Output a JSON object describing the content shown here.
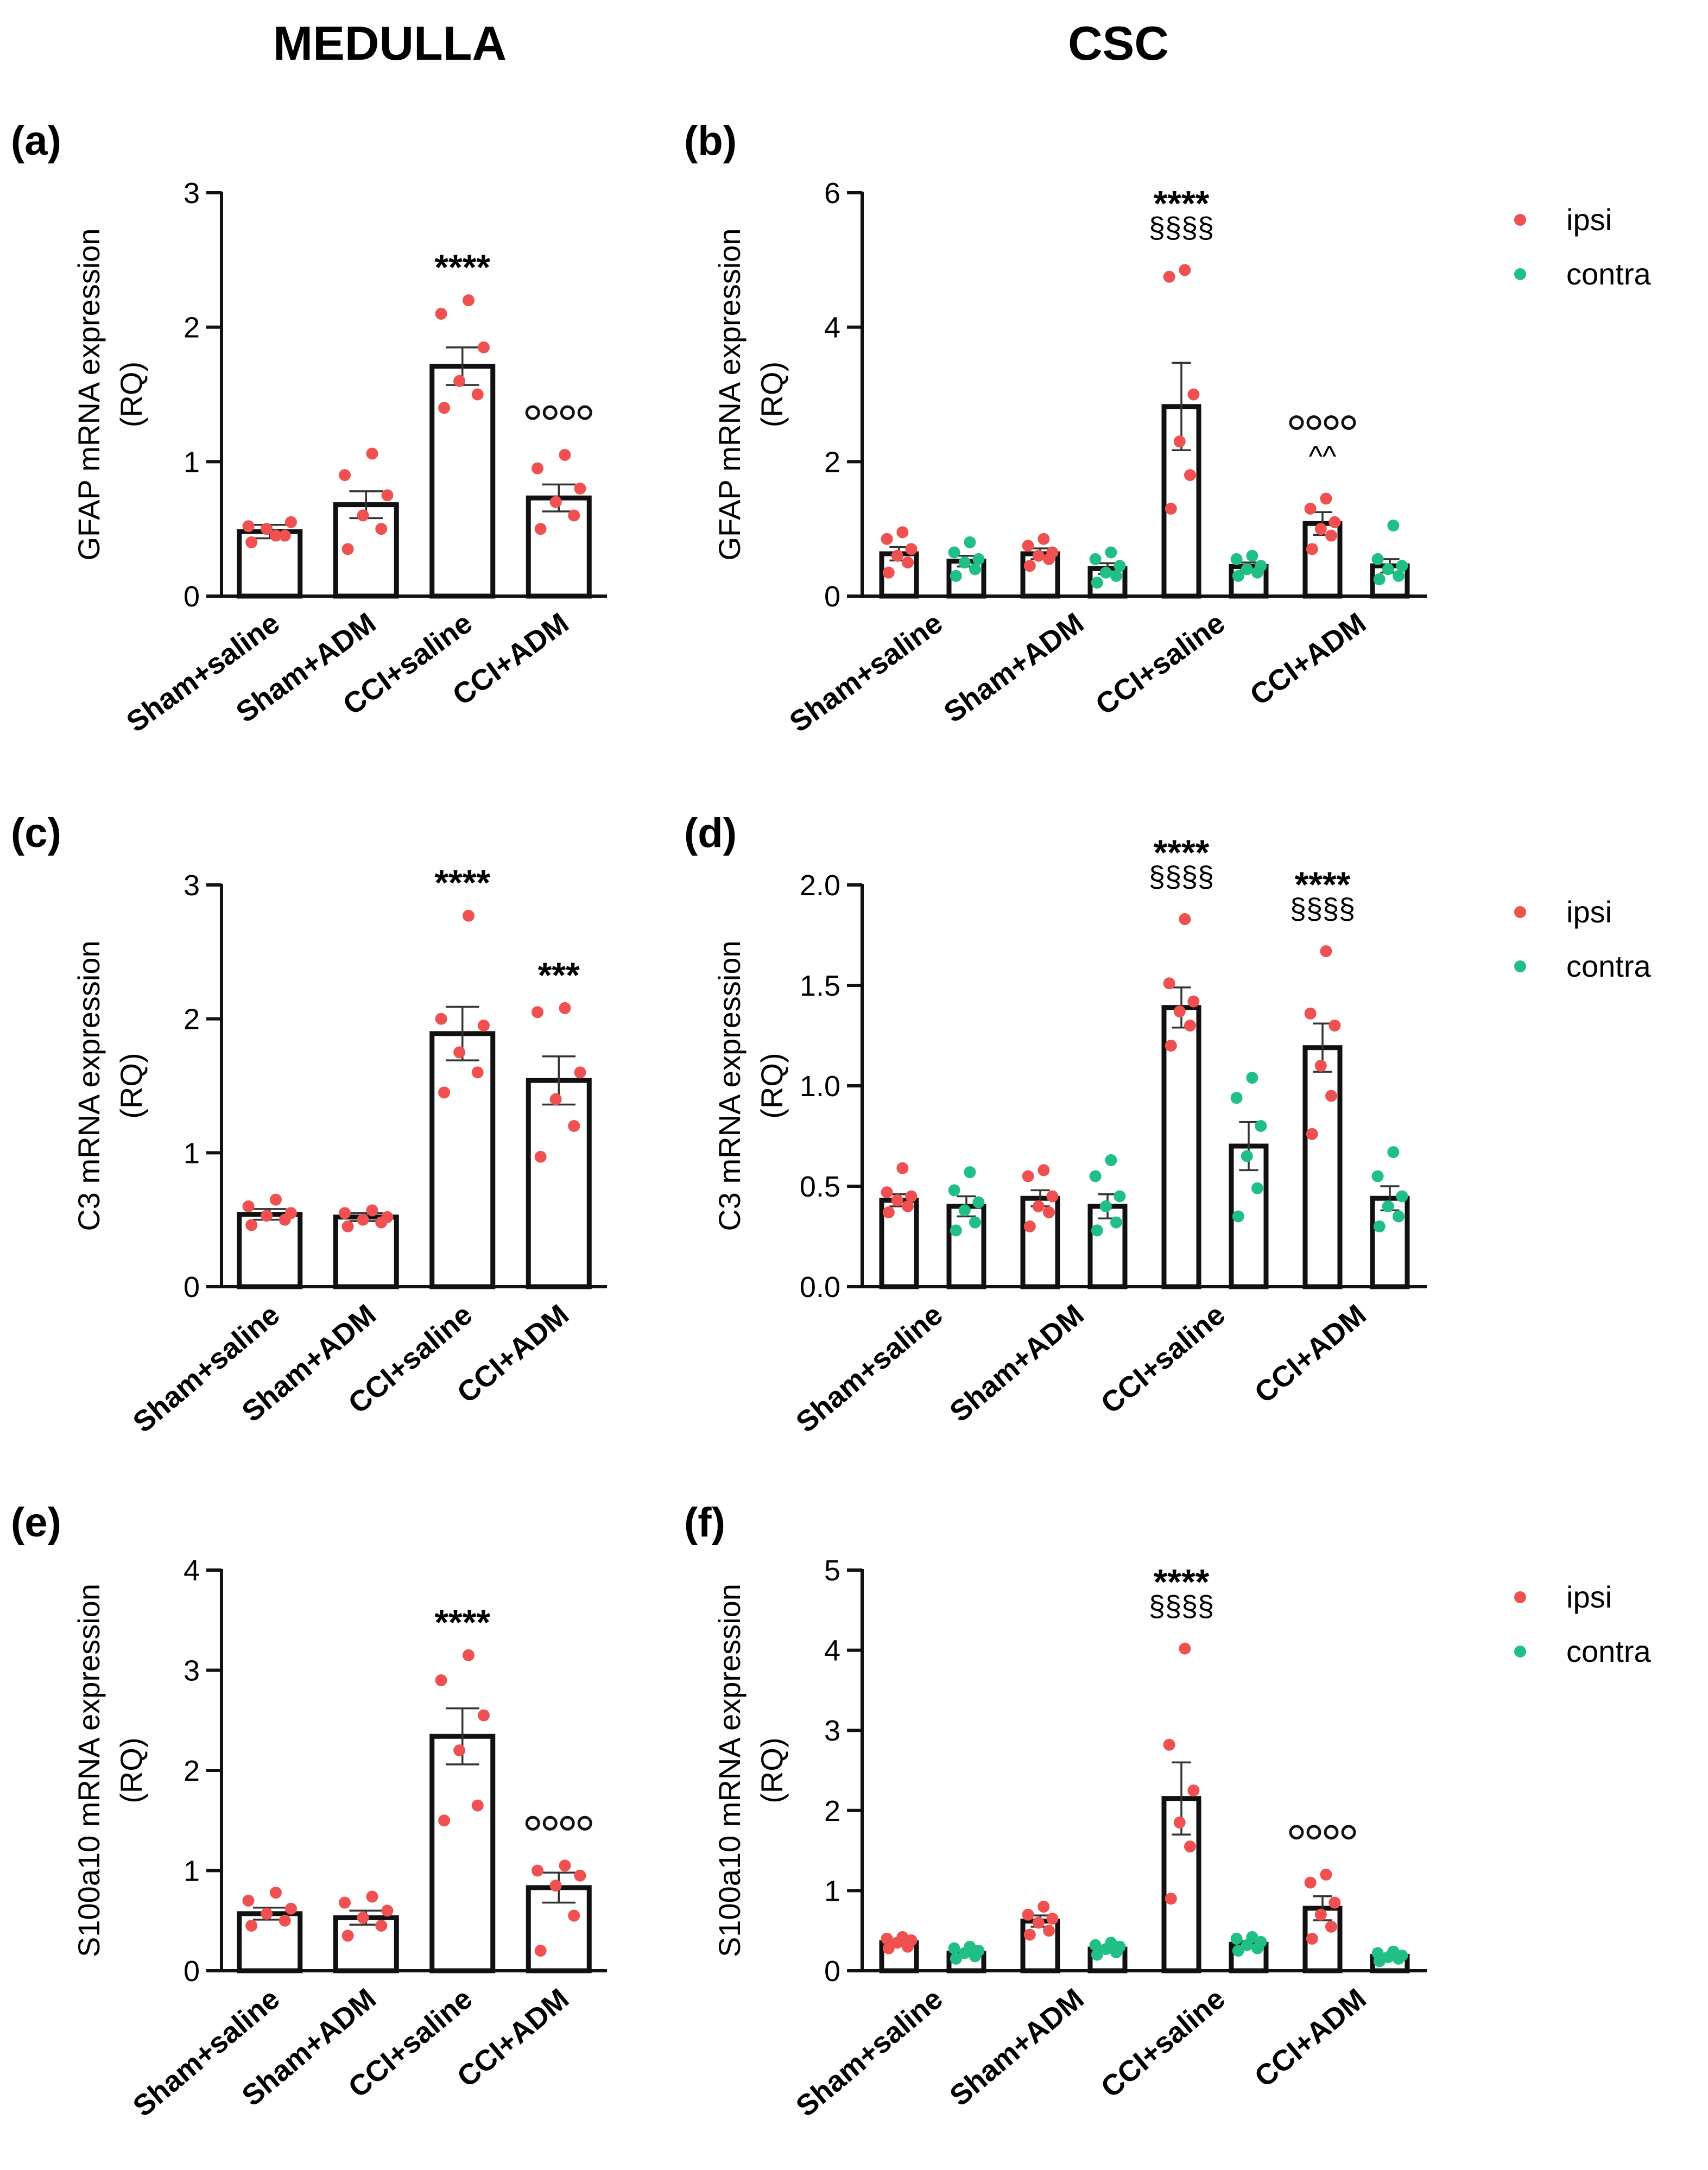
{
  "columns": {
    "left": "MEDULLA",
    "right": "CSC"
  },
  "colors": {
    "ipsi": "#f05050",
    "contra": "#1fbf85",
    "axis": "#111111",
    "bar_fill": "#ffffff"
  },
  "chart_data": [
    {
      "id": "a",
      "panel_label": "(a)",
      "type": "bar",
      "title": "",
      "ylabel_lines": [
        "GFAP mRNA expression",
        "(RQ)"
      ],
      "categories": [
        "Sham+saline",
        "Sham+ADM",
        "CCI+saline",
        "CCI+ADM"
      ],
      "ylim": [
        0,
        3
      ],
      "yticks": [
        "0",
        "1",
        "2",
        "3"
      ],
      "series": [
        {
          "name": "ipsi",
          "values": [
            0.48,
            0.68,
            1.71,
            0.73
          ],
          "sem": [
            0.05,
            0.1,
            0.14,
            0.1
          ],
          "points": [
            [
              0.4,
              0.45,
              0.5,
              0.55,
              0.52,
              0.45
            ],
            [
              0.35,
              0.5,
              0.6,
              0.75,
              0.9,
              1.06
            ],
            [
              1.4,
              1.5,
              1.6,
              1.85,
              2.1,
              2.2
            ],
            [
              0.5,
              0.6,
              0.7,
              0.8,
              0.95,
              1.05
            ]
          ]
        }
      ],
      "annotations": [
        {
          "category": 2,
          "lines": [
            "****"
          ]
        },
        {
          "category": 3,
          "lines": [
            "oooo"
          ]
        }
      ]
    },
    {
      "id": "b",
      "panel_label": "(b)",
      "type": "bar",
      "title": "",
      "ylabel_lines": [
        "GFAP mRNA expression",
        "(RQ)"
      ],
      "categories": [
        "Sham+saline",
        "Sham+ADM",
        "CCI+saline",
        "CCI+ADM"
      ],
      "ylim": [
        0,
        6
      ],
      "yticks": [
        "0",
        "2",
        "4",
        "6"
      ],
      "legend": [
        "ipsi",
        "contra"
      ],
      "series": [
        {
          "name": "ipsi",
          "values": [
            0.63,
            0.63,
            2.82,
            1.08
          ],
          "sem": [
            0.1,
            0.08,
            0.65,
            0.17
          ],
          "points": [
            [
              0.35,
              0.5,
              0.6,
              0.7,
              0.85,
              0.95
            ],
            [
              0.45,
              0.55,
              0.6,
              0.65,
              0.75,
              0.85
            ],
            [
              1.3,
              1.8,
              2.3,
              3.0,
              4.75,
              4.85
            ],
            [
              0.7,
              0.9,
              1.0,
              1.1,
              1.3,
              1.45
            ]
          ]
        },
        {
          "name": "contra",
          "values": [
            0.52,
            0.41,
            0.44,
            0.45
          ],
          "sem": [
            0.08,
            0.08,
            0.06,
            0.1
          ],
          "points": [
            [
              0.3,
              0.4,
              0.5,
              0.55,
              0.65,
              0.8
            ],
            [
              0.2,
              0.3,
              0.35,
              0.45,
              0.55,
              0.65
            ],
            [
              0.3,
              0.35,
              0.4,
              0.45,
              0.55,
              0.6
            ],
            [
              0.25,
              0.3,
              0.4,
              0.45,
              0.55,
              1.05
            ]
          ]
        }
      ],
      "annotations": [
        {
          "category": 2,
          "lines": [
            "****",
            "§§§§"
          ]
        },
        {
          "category": 3,
          "lines": [
            "oooo",
            "^^"
          ]
        }
      ]
    },
    {
      "id": "c",
      "panel_label": "(c)",
      "type": "bar",
      "title": "",
      "ylabel_lines": [
        "C3 mRNA expression",
        "(RQ)"
      ],
      "categories": [
        "Sham+saline",
        "Sham+ADM",
        "CCI+saline",
        "CCI+ADM"
      ],
      "ylim": [
        0,
        3
      ],
      "yticks": [
        "0",
        "1",
        "2",
        "3"
      ],
      "series": [
        {
          "name": "ipsi",
          "values": [
            0.54,
            0.52,
            1.89,
            1.54
          ],
          "sem": [
            0.04,
            0.03,
            0.2,
            0.18
          ],
          "points": [
            [
              0.46,
              0.5,
              0.53,
              0.55,
              0.6,
              0.65
            ],
            [
              0.45,
              0.48,
              0.5,
              0.52,
              0.55,
              0.57
            ],
            [
              1.45,
              1.6,
              1.75,
              1.95,
              2.0,
              2.77
            ],
            [
              0.97,
              1.2,
              1.4,
              1.6,
              2.05,
              2.08
            ]
          ]
        }
      ],
      "annotations": [
        {
          "category": 2,
          "lines": [
            "****"
          ]
        },
        {
          "category": 3,
          "lines": [
            "***"
          ]
        }
      ]
    },
    {
      "id": "d",
      "panel_label": "(d)",
      "type": "bar",
      "title": "",
      "ylabel_lines": [
        "C3 mRNA expression",
        "(RQ)"
      ],
      "categories": [
        "Sham+saline",
        "Sham+ADM",
        "CCI+saline",
        "CCI+ADM"
      ],
      "ylim": [
        0,
        2
      ],
      "yticks": [
        "0.0",
        "0.5",
        "1.0",
        "1.5",
        "2.0"
      ],
      "legend": [
        "ipsi",
        "contra"
      ],
      "series": [
        {
          "name": "ipsi",
          "values": [
            0.43,
            0.44,
            1.39,
            1.19
          ],
          "sem": [
            0.03,
            0.04,
            0.1,
            0.12
          ],
          "points": [
            [
              0.37,
              0.4,
              0.43,
              0.45,
              0.47,
              0.59
            ],
            [
              0.3,
              0.37,
              0.4,
              0.45,
              0.55,
              0.58
            ],
            [
              1.2,
              1.3,
              1.37,
              1.42,
              1.51,
              1.83
            ],
            [
              0.76,
              0.95,
              1.1,
              1.3,
              1.36,
              1.67
            ]
          ]
        },
        {
          "name": "contra",
          "values": [
            0.4,
            0.4,
            0.7,
            0.44
          ],
          "sem": [
            0.05,
            0.06,
            0.12,
            0.06
          ],
          "points": [
            [
              0.28,
              0.32,
              0.38,
              0.42,
              0.48,
              0.57
            ],
            [
              0.28,
              0.32,
              0.4,
              0.45,
              0.55,
              0.63
            ],
            [
              0.35,
              0.49,
              0.65,
              0.8,
              0.94,
              1.04
            ],
            [
              0.3,
              0.35,
              0.4,
              0.45,
              0.55,
              0.67
            ]
          ]
        }
      ],
      "annotations": [
        {
          "category": 2,
          "lines": [
            "****",
            "§§§§"
          ]
        },
        {
          "category": 3,
          "lines": [
            "****",
            "§§§§"
          ]
        }
      ]
    },
    {
      "id": "e",
      "panel_label": "(e)",
      "type": "bar",
      "title": "",
      "ylabel_lines": [
        "S100a10 mRNA expression",
        "(RQ)"
      ],
      "categories": [
        "Sham+saline",
        "Sham+ADM",
        "CCI+saline",
        "CCI+ADM"
      ],
      "ylim": [
        0,
        4
      ],
      "yticks": [
        "0",
        "1",
        "2",
        "3",
        "4"
      ],
      "series": [
        {
          "name": "ipsi",
          "values": [
            0.57,
            0.53,
            2.34,
            0.83
          ],
          "sem": [
            0.06,
            0.07,
            0.28,
            0.15
          ],
          "points": [
            [
              0.45,
              0.5,
              0.57,
              0.62,
              0.7,
              0.78
            ],
            [
              0.35,
              0.45,
              0.53,
              0.6,
              0.68,
              0.74
            ],
            [
              1.5,
              1.65,
              2.2,
              2.55,
              2.9,
              3.15
            ],
            [
              0.2,
              0.55,
              0.85,
              0.95,
              1.0,
              1.05
            ]
          ]
        }
      ],
      "annotations": [
        {
          "category": 2,
          "lines": [
            "****"
          ]
        },
        {
          "category": 3,
          "lines": [
            "oooo"
          ]
        }
      ]
    },
    {
      "id": "f",
      "panel_label": "(f)",
      "type": "bar",
      "title": "",
      "ylabel_lines": [
        "S100a10 mRNA expression",
        "(RQ)"
      ],
      "categories": [
        "Sham+saline",
        "Sham+ADM",
        "CCI+saline",
        "CCI+ADM"
      ],
      "ylim": [
        0,
        5
      ],
      "yticks": [
        "0",
        "1",
        "2",
        "3",
        "4",
        "5"
      ],
      "legend": [
        "ipsi",
        "contra"
      ],
      "series": [
        {
          "name": "ipsi",
          "values": [
            0.35,
            0.62,
            2.15,
            0.78
          ],
          "sem": [
            0.04,
            0.07,
            0.45,
            0.15
          ],
          "points": [
            [
              0.28,
              0.3,
              0.35,
              0.38,
              0.4,
              0.42
            ],
            [
              0.45,
              0.5,
              0.6,
              0.65,
              0.7,
              0.8
            ],
            [
              0.9,
              1.55,
              1.85,
              2.25,
              2.82,
              4.02
            ],
            [
              0.4,
              0.55,
              0.7,
              0.85,
              1.1,
              1.2
            ]
          ]
        },
        {
          "name": "contra",
          "values": [
            0.22,
            0.27,
            0.33,
            0.18
          ],
          "sem": [
            0.03,
            0.03,
            0.04,
            0.02
          ],
          "points": [
            [
              0.15,
              0.18,
              0.22,
              0.25,
              0.28,
              0.3
            ],
            [
              0.2,
              0.23,
              0.27,
              0.3,
              0.32,
              0.35
            ],
            [
              0.25,
              0.28,
              0.32,
              0.36,
              0.4,
              0.42
            ],
            [
              0.12,
              0.15,
              0.17,
              0.19,
              0.22,
              0.24
            ]
          ]
        }
      ],
      "annotations": [
        {
          "category": 2,
          "lines": [
            "****",
            "§§§§"
          ]
        },
        {
          "category": 3,
          "lines": [
            "oooo"
          ]
        }
      ]
    }
  ]
}
